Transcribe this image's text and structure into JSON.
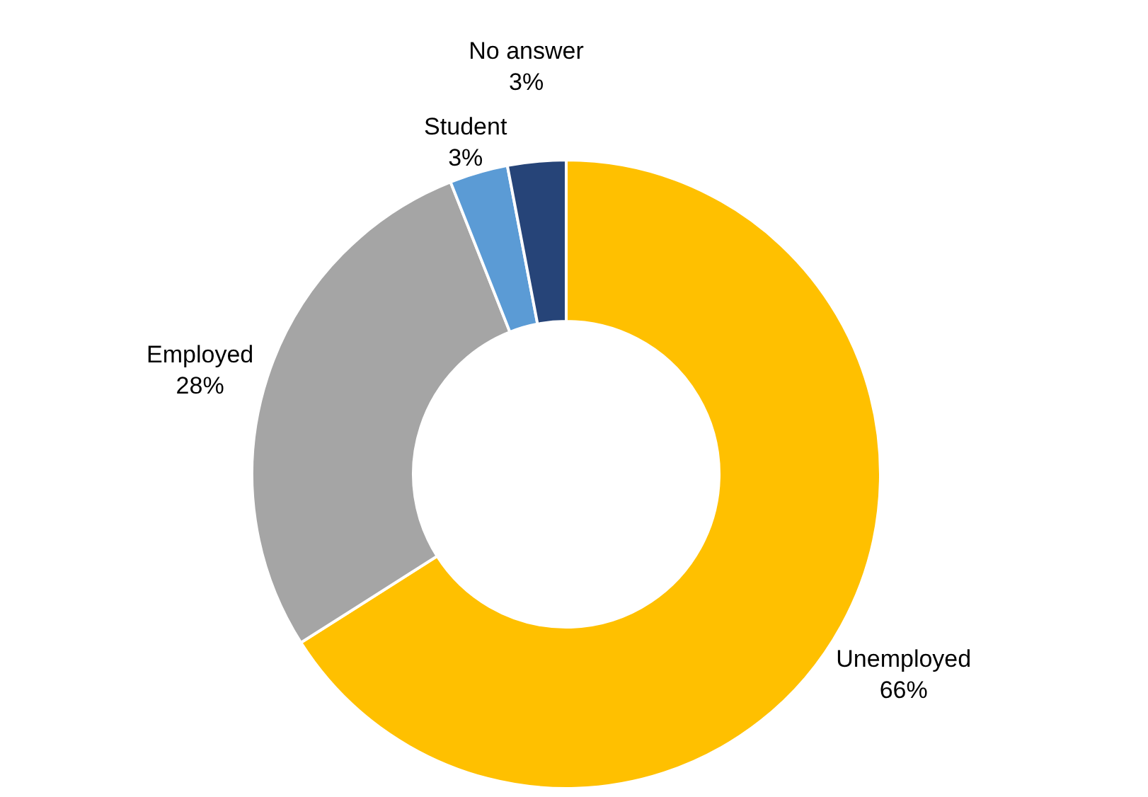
{
  "chart_data": {
    "type": "donut",
    "categories": [
      "Unemployed",
      "Employed",
      "Student",
      "No answer"
    ],
    "values": [
      66,
      28,
      3,
      3
    ],
    "colors": [
      "#ffc000",
      "#a5a5a5",
      "#5b9bd5",
      "#264478"
    ],
    "value_labels": [
      "66%",
      "28%",
      "3%",
      "3%"
    ]
  }
}
